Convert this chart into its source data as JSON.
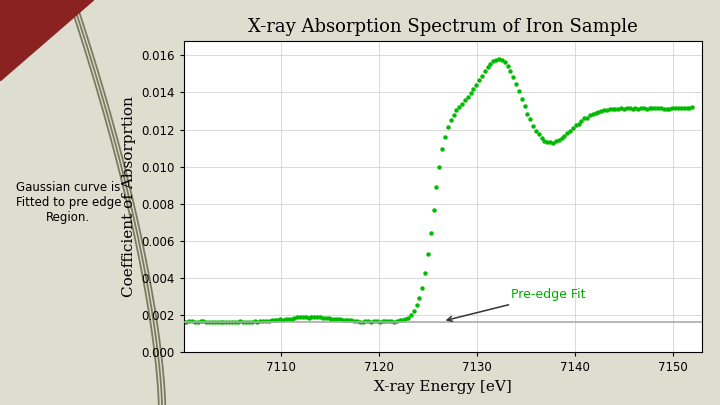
{
  "title": "X-ray Absorption Spectrum of Iron Sample",
  "xlabel": "X-ray Energy [eV]",
  "ylabel": "Coefficient of Absorprtion",
  "xlim": [
    7100,
    7153
  ],
  "ylim": [
    0.0,
    0.0168
  ],
  "yticks": [
    0.0,
    0.002,
    0.004,
    0.006,
    0.008,
    0.01,
    0.012,
    0.014,
    0.016
  ],
  "xticks": [
    7110,
    7120,
    7130,
    7140,
    7150
  ],
  "dot_color": "#00bb00",
  "fit_line_color": "#aaaaaa",
  "bg_color": "#ddddd0",
  "plot_bg": "#ffffff",
  "annotation_text": "Pre-edge Fit",
  "annotation_color": "#00aa00",
  "arrow_color": "#333333",
  "title_fontsize": 13,
  "label_fontsize": 11,
  "left_text": "Gaussian curve is\nFitted to pre edge\nRegion.",
  "triangle_color": "#8b2222",
  "deco_line_color": "#5a5a3a"
}
